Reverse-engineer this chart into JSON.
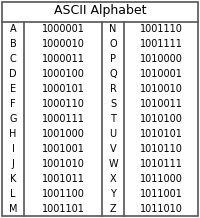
{
  "title": "ASCII Alphabet",
  "left_letters": [
    "A",
    "B",
    "C",
    "D",
    "E",
    "F",
    "G",
    "H",
    "I",
    "J",
    "K",
    "L",
    "M"
  ],
  "left_codes": [
    "1000001",
    "1000010",
    "1000011",
    "1000100",
    "1000101",
    "1000110",
    "1000111",
    "1001000",
    "1001001",
    "1001010",
    "1001011",
    "1001100",
    "1001101"
  ],
  "right_letters": [
    "N",
    "O",
    "P",
    "Q",
    "R",
    "S",
    "T",
    "U",
    "V",
    "W",
    "X",
    "Y",
    "Z"
  ],
  "right_codes": [
    "1001110",
    "1001111",
    "1010000",
    "1010001",
    "1010010",
    "1010011",
    "1010100",
    "1010101",
    "1010110",
    "1010111",
    "1011000",
    "1011001",
    "1011010"
  ],
  "bg_color": "#ffffff",
  "border_color": "#555555",
  "font_size": 7.0,
  "title_font_size": 9.0
}
